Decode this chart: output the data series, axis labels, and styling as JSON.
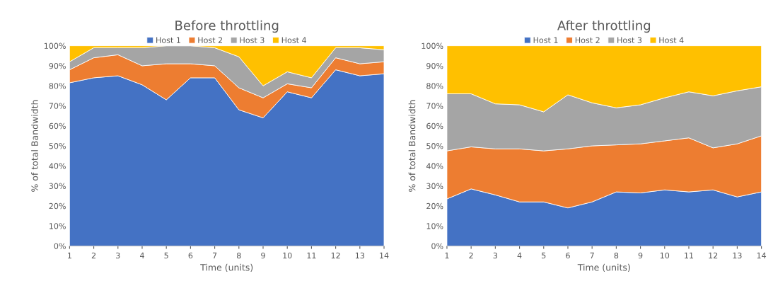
{
  "chart_data": [
    {
      "type": "area",
      "stacked": true,
      "title": "Before throttling",
      "xlabel": "Time (units)",
      "ylabel": "% of total Bandwidth",
      "legend": "top",
      "grid": false,
      "x": [
        1,
        2,
        3,
        4,
        5,
        6,
        7,
        8,
        9,
        10,
        11,
        12,
        13,
        14
      ],
      "xlim": [
        1,
        14
      ],
      "xticks": [
        1,
        2,
        3,
        4,
        5,
        6,
        7,
        8,
        9,
        10,
        11,
        12,
        13,
        14
      ],
      "ylim": [
        0,
        100
      ],
      "yticks": [
        {
          "value": 0,
          "label": "0%"
        },
        {
          "value": 10,
          "label": "10%"
        },
        {
          "value": 20,
          "label": "20%"
        },
        {
          "value": 30,
          "label": "30%"
        },
        {
          "value": 40,
          "label": "40%"
        },
        {
          "value": 50,
          "label": "50%"
        },
        {
          "value": 60,
          "label": "60%"
        },
        {
          "value": 70,
          "label": "70%"
        },
        {
          "value": 80,
          "label": "80%"
        },
        {
          "value": 90,
          "label": "90%"
        },
        {
          "value": 100,
          "label": "100%"
        }
      ],
      "series": [
        {
          "name": "Host 1",
          "color": "#4472c4",
          "values": [
            81.5,
            84,
            85,
            80.5,
            73,
            84,
            84,
            68,
            64,
            77,
            74,
            88,
            85,
            86
          ]
        },
        {
          "name": "Host 2",
          "color": "#ed7d31",
          "values": [
            6.5,
            10,
            10.5,
            9.5,
            18,
            7,
            6,
            11,
            10,
            4,
            5,
            6,
            6,
            6
          ]
        },
        {
          "name": "Host 3",
          "color": "#a5a5a5",
          "values": [
            4,
            5,
            3.5,
            9,
            9,
            9,
            9,
            15.5,
            6,
            6,
            5,
            5,
            8,
            6
          ]
        },
        {
          "name": "Host 4",
          "color": "#ffc000",
          "values": [
            8,
            1,
            1,
            1,
            0,
            0,
            1,
            5.5,
            20,
            13,
            16,
            1,
            1,
            2
          ]
        }
      ]
    },
    {
      "type": "area",
      "stacked": true,
      "title": "After throttling",
      "xlabel": "Time (units)",
      "ylabel": "% of total Bandwidth",
      "legend": "top",
      "grid": false,
      "x": [
        1,
        2,
        3,
        4,
        5,
        6,
        7,
        8,
        9,
        10,
        11,
        12,
        13,
        14
      ],
      "xlim": [
        1,
        14
      ],
      "xticks": [
        1,
        2,
        3,
        4,
        5,
        6,
        7,
        8,
        9,
        10,
        11,
        12,
        13,
        14
      ],
      "ylim": [
        0,
        100
      ],
      "yticks": [
        {
          "value": 0,
          "label": "0%"
        },
        {
          "value": 10,
          "label": "10%"
        },
        {
          "value": 20,
          "label": "20%"
        },
        {
          "value": 30,
          "label": "30%"
        },
        {
          "value": 40,
          "label": "40%"
        },
        {
          "value": 50,
          "label": "50%"
        },
        {
          "value": 60,
          "label": "60%"
        },
        {
          "value": 70,
          "label": "70%"
        },
        {
          "value": 80,
          "label": "80%"
        },
        {
          "value": 90,
          "label": "90%"
        },
        {
          "value": 100,
          "label": "100%"
        }
      ],
      "series": [
        {
          "name": "Host 1",
          "color": "#4472c4",
          "values": [
            23.5,
            28.5,
            25.5,
            22,
            22,
            19,
            22,
            27,
            26.5,
            28,
            27,
            28,
            24.5,
            27
          ]
        },
        {
          "name": "Host 2",
          "color": "#ed7d31",
          "values": [
            24,
            21,
            23,
            26.5,
            25.5,
            29.5,
            28,
            23.5,
            24.5,
            24.5,
            27,
            21,
            26.5,
            28
          ]
        },
        {
          "name": "Host 3",
          "color": "#a5a5a5",
          "values": [
            28.5,
            26.5,
            22.5,
            22,
            19.5,
            27,
            21.5,
            18.5,
            19.5,
            21.5,
            23,
            26,
            26.5,
            24.5
          ]
        },
        {
          "name": "Host 4",
          "color": "#ffc000",
          "values": [
            24,
            24,
            29,
            29.5,
            33,
            24.5,
            28.5,
            31,
            29.5,
            26,
            23,
            25,
            22.5,
            20.5
          ]
        }
      ]
    }
  ]
}
